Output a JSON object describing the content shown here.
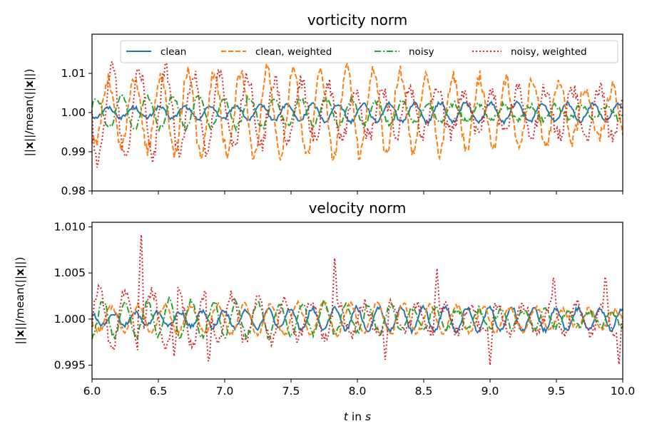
{
  "chart_data": [
    {
      "type": "line",
      "title": "vorticity norm",
      "ylabel": "||x||/mean(||x||)",
      "xlim": [
        6.0,
        10.0
      ],
      "ylim": [
        0.98,
        1.02
      ],
      "yticks": [
        "0.98",
        "0.99",
        "1.00",
        "1.01"
      ],
      "ytick_values": [
        0.98,
        0.99,
        1.0,
        1.01
      ],
      "x_tick_labels_shown": false,
      "legend": "top-right, 4 columns",
      "series": [
        {
          "name": "clean",
          "color": "#1f77b4",
          "dash": "solid",
          "amplitude": 0.0025,
          "freq_hz": 5.2
        },
        {
          "name": "clean, weighted",
          "color": "#ff7f0e",
          "dash": "dashed",
          "amplitude": 0.011,
          "freq_hz": 5.0
        },
        {
          "name": "noisy",
          "color": "#2ca02c",
          "dash": "dashdot",
          "amplitude": 0.004,
          "freq_hz": 5.2
        },
        {
          "name": "noisy, weighted",
          "color": "#d62728",
          "dash": "dotted",
          "amplitude": 0.013,
          "freq_hz": 4.9
        }
      ]
    },
    {
      "type": "line",
      "title": "velocity norm",
      "ylabel": "||x||/mean(||x||)",
      "xlabel": "t in s",
      "xlim": [
        6.0,
        10.0
      ],
      "ylim": [
        0.9935,
        1.0105
      ],
      "yticks": [
        "0.995",
        "1.000",
        "1.005",
        "1.010"
      ],
      "ytick_values": [
        0.995,
        1.0,
        1.005,
        1.01
      ],
      "xticks": [
        "6.0",
        "6.5",
        "7.0",
        "7.5",
        "8.0",
        "8.5",
        "9.0",
        "9.5",
        "10.0"
      ],
      "xtick_values": [
        6.0,
        6.5,
        7.0,
        7.5,
        8.0,
        8.5,
        9.0,
        9.5,
        10.0
      ],
      "series": [
        {
          "name": "clean",
          "color": "#1f77b4",
          "dash": "solid",
          "amplitude": 0.0013,
          "freq_hz": 6.0
        },
        {
          "name": "clean, weighted",
          "color": "#ff7f0e",
          "dash": "dashed",
          "amplitude": 0.0017,
          "freq_hz": 5.0
        },
        {
          "name": "noisy",
          "color": "#2ca02c",
          "dash": "dashdot",
          "amplitude": 0.002,
          "freq_hz": 6.0
        },
        {
          "name": "noisy, weighted",
          "color": "#d62728",
          "dash": "dotted",
          "amplitude": 0.0035,
          "freq_hz": 5.0,
          "spikes": [
            {
              "x": 6.37,
              "y": 1.0097
            },
            {
              "x": 7.83,
              "y": 1.007
            },
            {
              "x": 8.6,
              "y": 1.0055
            },
            {
              "x": 9.48,
              "y": 1.0053
            },
            {
              "x": 9.87,
              "y": 1.0053
            },
            {
              "x": 6.88,
              "y": 0.9946
            },
            {
              "x": 9.0,
              "y": 0.995
            },
            {
              "x": 9.97,
              "y": 0.9948
            },
            {
              "x": 6.62,
              "y": 0.9958
            },
            {
              "x": 8.21,
              "y": 0.9955
            }
          ]
        }
      ]
    }
  ]
}
